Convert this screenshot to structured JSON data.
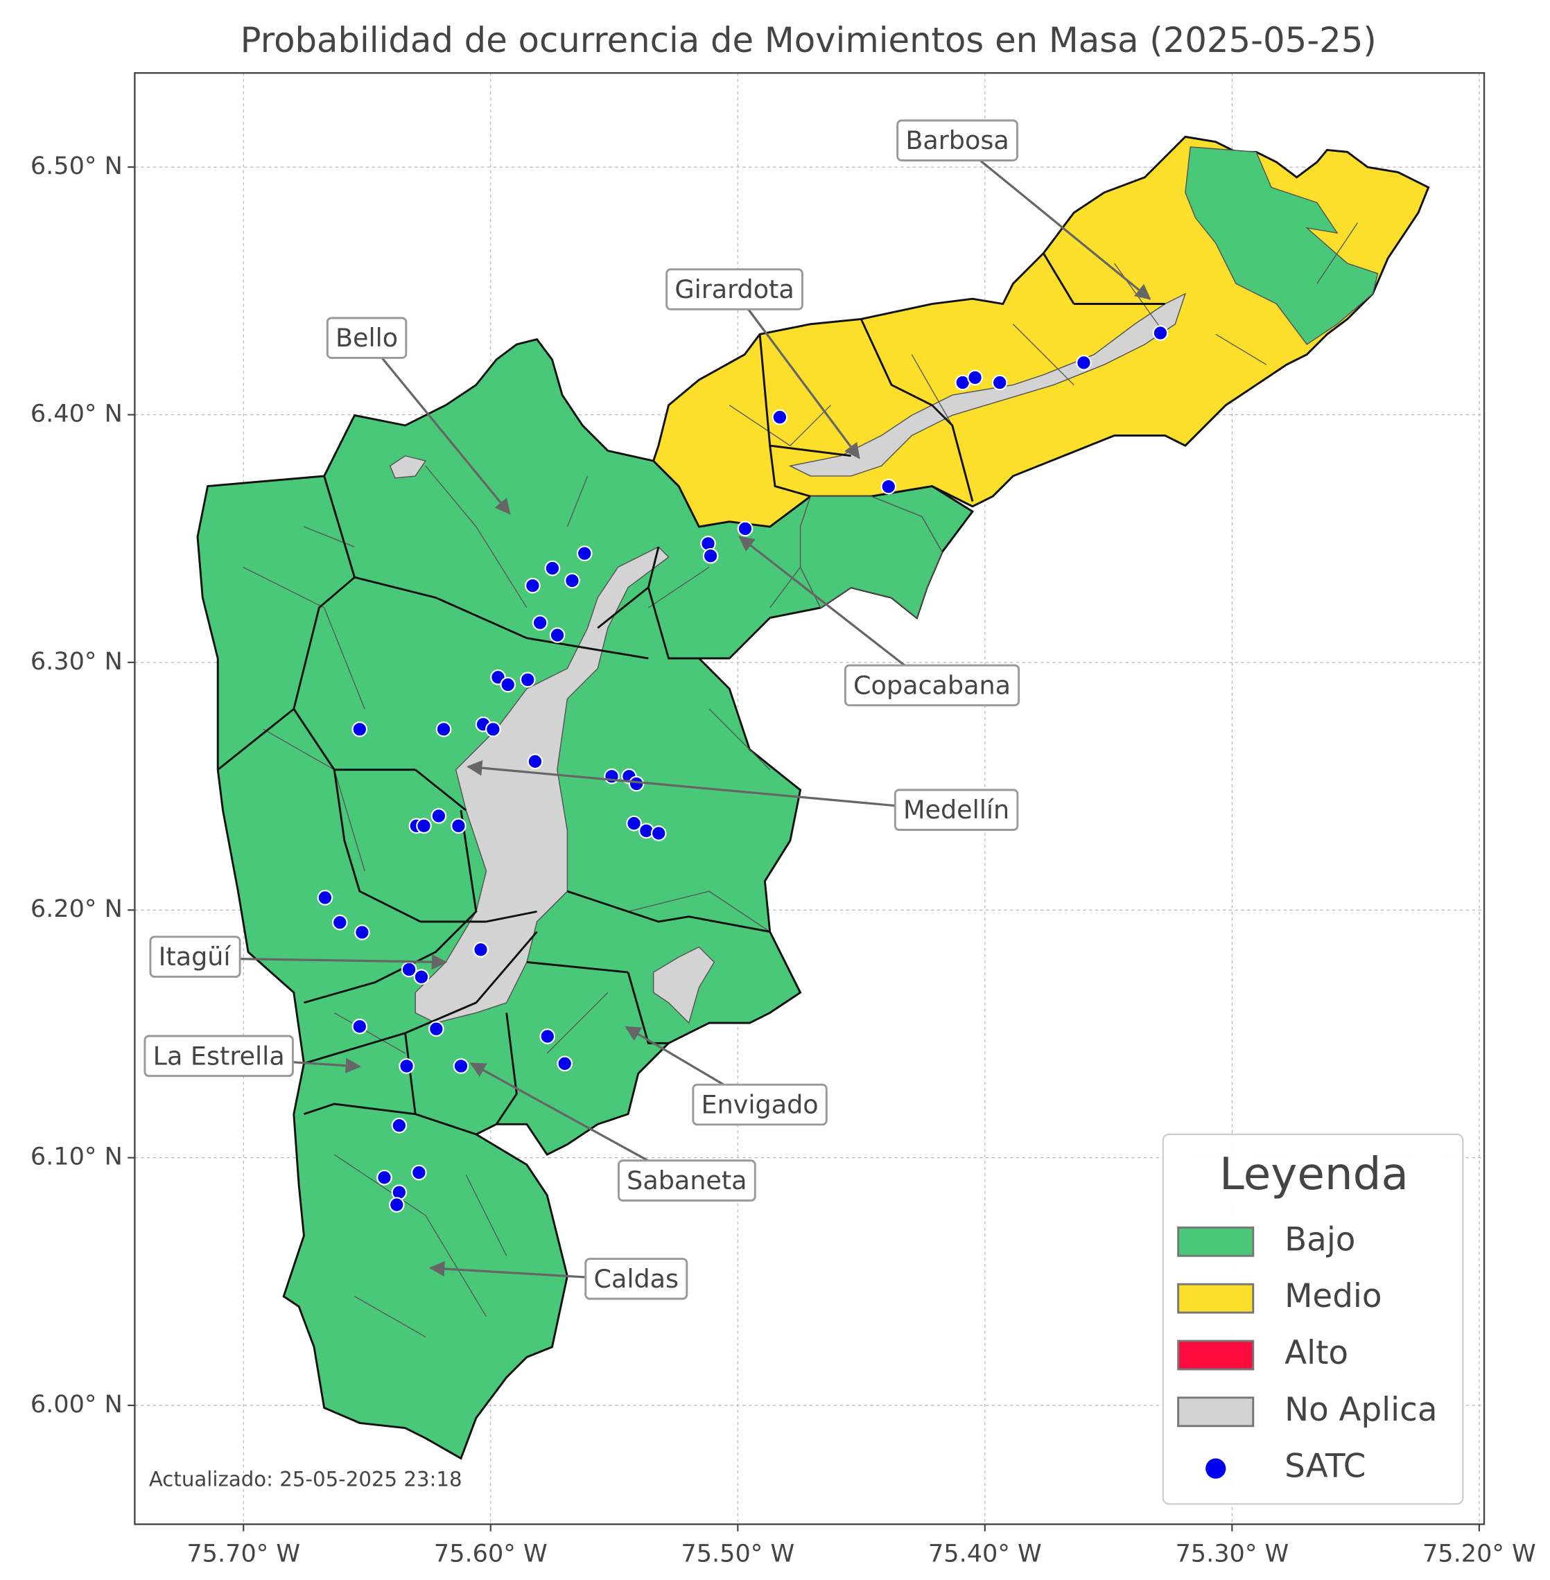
{
  "chart_data": {
    "type": "map",
    "title": "Probabilidad de ocurrencia de Movimientos en Masa (2025-05-25)",
    "xlim": [
      -75.744,
      -75.198
    ],
    "ylim": [
      5.952,
      6.538
    ],
    "xticks": [
      {
        "value": -75.7,
        "label": "75.70° W"
      },
      {
        "value": -75.6,
        "label": "75.60° W"
      },
      {
        "value": -75.5,
        "label": "75.50° W"
      },
      {
        "value": -75.4,
        "label": "75.40° W"
      },
      {
        "value": -75.3,
        "label": "75.30° W"
      },
      {
        "value": -75.2,
        "label": "75.20° W"
      }
    ],
    "yticks": [
      {
        "value": 6.0,
        "label": "6.00° N"
      },
      {
        "value": 6.1,
        "label": "6.10° N"
      },
      {
        "value": 6.2,
        "label": "6.20° N"
      },
      {
        "value": 6.3,
        "label": "6.30° N"
      },
      {
        "value": 6.4,
        "label": "6.40° N"
      },
      {
        "value": 6.5,
        "label": "6.50° N"
      }
    ],
    "grid": true,
    "legend": "lower right",
    "legend_title": "Leyenda",
    "classes": [
      {
        "name": "Bajo",
        "color": "#48c878"
      },
      {
        "name": "Medio",
        "color": "#fbdf2a"
      },
      {
        "name": "Alto",
        "color": "#ff0a3c"
      },
      {
        "name": "No Aplica",
        "color": "#d3d3d3"
      }
    ],
    "points": {
      "name": "SATC",
      "color": "#0000ee",
      "x": [
        -75.483,
        -75.409,
        -75.404,
        -75.394,
        -75.36,
        -75.329,
        -75.439,
        -75.497,
        -75.512,
        -75.511,
        -75.562,
        -75.575,
        -75.567,
        -75.583,
        -75.58,
        -75.573,
        -75.597,
        -75.593,
        -75.585,
        -75.653,
        -75.619,
        -75.603,
        -75.599,
        -75.582,
        -75.551,
        -75.544,
        -75.541,
        -75.542,
        -75.537,
        -75.532,
        -75.621,
        -75.63,
        -75.627,
        -75.613,
        -75.667,
        -75.661,
        -75.652,
        -75.604,
        -75.633,
        -75.628,
        -75.653,
        -75.622,
        -75.577,
        -75.57,
        -75.634,
        -75.612,
        -75.637,
        -75.643,
        -75.629,
        -75.637,
        -75.638
      ],
      "y": [
        6.399,
        6.413,
        6.415,
        6.413,
        6.421,
        6.433,
        6.371,
        6.354,
        6.348,
        6.343,
        6.344,
        6.338,
        6.333,
        6.331,
        6.316,
        6.311,
        6.294,
        6.291,
        6.293,
        6.273,
        6.273,
        6.275,
        6.273,
        6.26,
        6.254,
        6.254,
        6.251,
        6.235,
        6.232,
        6.231,
        6.238,
        6.234,
        6.234,
        6.234,
        6.205,
        6.195,
        6.191,
        6.184,
        6.176,
        6.173,
        6.153,
        6.152,
        6.149,
        6.138,
        6.137,
        6.137,
        6.113,
        6.092,
        6.094,
        6.086,
        6.081
      ]
    },
    "annotations": [
      "Barbosa",
      "Girardota",
      "Bello",
      "Copacabana",
      "Medellín",
      "Itagüí",
      "La Estrella",
      "Envigado",
      "Sabaneta",
      "Caldas"
    ],
    "footnote": "Actualizado: 25-05-2025 23:18"
  }
}
